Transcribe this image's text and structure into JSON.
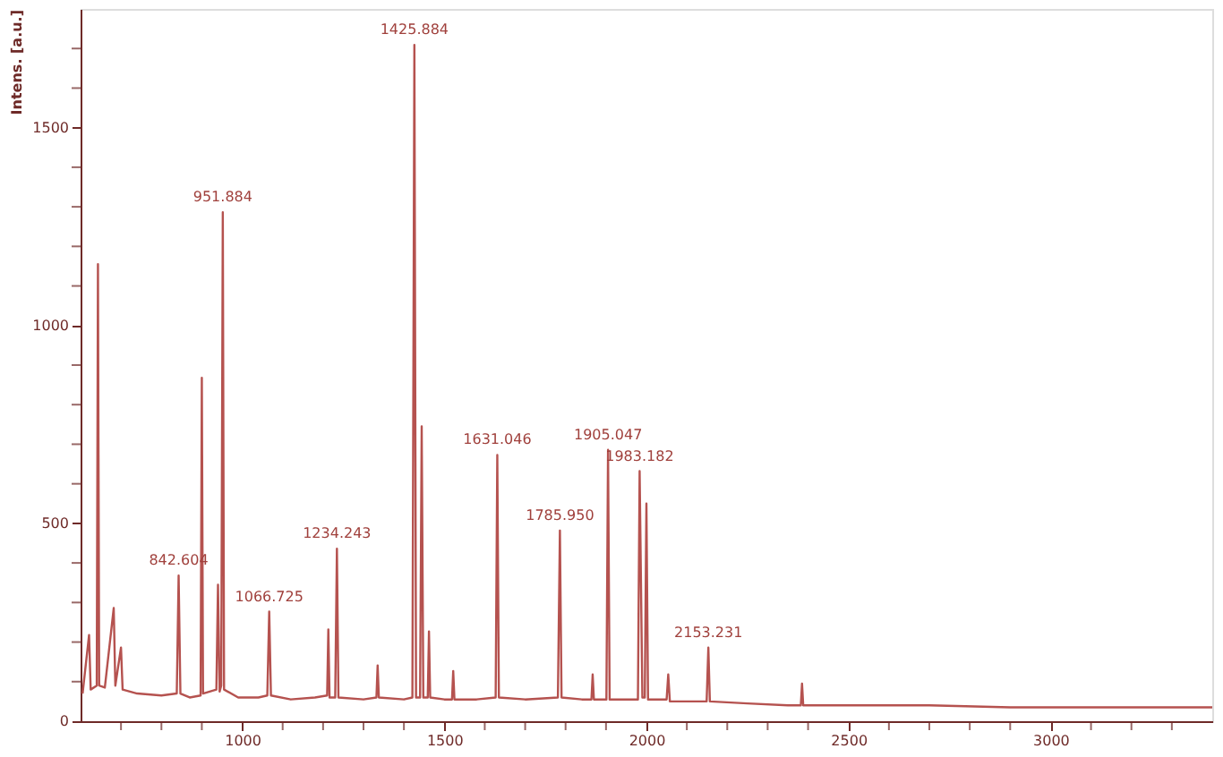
{
  "chart_data": {
    "type": "line",
    "ylabel": "Intens. [a.u.]",
    "x": [
      605,
      621,
      625,
      640,
      643,
      646,
      660,
      682,
      686,
      700,
      704,
      740,
      800,
      838,
      842.604,
      847,
      870,
      897,
      900,
      903,
      936,
      940,
      944,
      948,
      951.884,
      955,
      990,
      1040,
      1062,
      1066.725,
      1071,
      1120,
      1180,
      1210,
      1213,
      1216,
      1230,
      1234.243,
      1238,
      1300,
      1332,
      1335,
      1338,
      1400,
      1421,
      1425.884,
      1430,
      1440,
      1444,
      1448,
      1459,
      1462,
      1465,
      1500,
      1519,
      1522,
      1525,
      1580,
      1627,
      1631.046,
      1635,
      1700,
      1781,
      1785.95,
      1790,
      1840,
      1864,
      1867,
      1870,
      1901,
      1905.047,
      1909,
      1960,
      1979,
      1983.182,
      1990,
      1996,
      2000,
      2004,
      2050,
      2054,
      2058,
      2100,
      2149,
      2153.231,
      2157,
      2250,
      2350,
      2382,
      2385,
      2388,
      2500,
      2700,
      2900,
      3100,
      3300,
      3400
    ],
    "series": [
      {
        "color": "#b5524f",
        "values": [
          70,
          218,
          80,
          90,
          1155,
          90,
          85,
          286,
          90,
          186,
          80,
          70,
          65,
          70,
          368,
          70,
          60,
          65,
          868,
          70,
          80,
          345,
          75,
          90,
          1286,
          80,
          60,
          60,
          65,
          277,
          65,
          55,
          60,
          65,
          232,
          60,
          60,
          436,
          60,
          55,
          60,
          141,
          60,
          55,
          60,
          1709,
          60,
          60,
          745,
          60,
          60,
          227,
          60,
          55,
          55,
          127,
          55,
          55,
          60,
          673,
          60,
          55,
          60,
          482,
          60,
          55,
          55,
          118,
          55,
          55,
          686,
          55,
          55,
          55,
          632,
          60,
          60,
          550,
          55,
          55,
          118,
          50,
          50,
          50,
          186,
          50,
          45,
          40,
          40,
          95,
          40,
          40,
          40,
          35,
          35,
          35,
          35
        ]
      }
    ],
    "annotations": [
      {
        "text": "842.604",
        "x": 842.604,
        "y": 368
      },
      {
        "text": "951.884",
        "x": 951.884,
        "y": 1286
      },
      {
        "text": "1066.725",
        "x": 1066.725,
        "y": 277
      },
      {
        "text": "1234.243",
        "x": 1234.243,
        "y": 436
      },
      {
        "text": "1425.884",
        "x": 1425.884,
        "y": 1709
      },
      {
        "text": "1631.046",
        "x": 1631.046,
        "y": 673
      },
      {
        "text": "1785.950",
        "x": 1785.95,
        "y": 482
      },
      {
        "text": "1905.047",
        "x": 1905.047,
        "y": 686
      },
      {
        "text": "1983.182",
        "x": 1983.182,
        "y": 632
      },
      {
        "text": "2153.231",
        "x": 2153.231,
        "y": 186
      }
    ],
    "xlim": [
      600,
      3400
    ],
    "xticks": [
      {
        "value": 700,
        "label": null
      },
      {
        "value": 800,
        "label": null
      },
      {
        "value": 900,
        "label": null
      },
      1000,
      {
        "value": 1100,
        "label": null
      },
      {
        "value": 1200,
        "label": null
      },
      {
        "value": 1300,
        "label": null
      },
      {
        "value": 1400,
        "label": null
      },
      1500,
      {
        "value": 1600,
        "label": null
      },
      {
        "value": 1700,
        "label": null
      },
      {
        "value": 1800,
        "label": null
      },
      {
        "value": 1900,
        "label": null
      },
      2000,
      {
        "value": 2100,
        "label": null
      },
      {
        "value": 2200,
        "label": null
      },
      {
        "value": 2300,
        "label": null
      },
      {
        "value": 2400,
        "label": null
      },
      2500,
      {
        "value": 2600,
        "label": null
      },
      {
        "value": 2700,
        "label": null
      },
      {
        "value": 2800,
        "label": null
      },
      {
        "value": 2900,
        "label": null
      },
      3000,
      {
        "value": 3100,
        "label": null
      },
      {
        "value": 3200,
        "label": null
      },
      {
        "value": 3300,
        "label": null
      }
    ],
    "ylim": [
      0,
      1800
    ],
    "yticks": [
      0,
      {
        "value": 100,
        "label": null
      },
      {
        "value": 200,
        "label": null
      },
      {
        "value": 300,
        "label": null
      },
      {
        "value": 400,
        "label": null
      },
      500,
      {
        "value": 600,
        "label": null
      },
      {
        "value": 700,
        "label": null
      },
      {
        "value": 800,
        "label": null
      },
      {
        "value": 900,
        "label": null
      },
      1000,
      {
        "value": 1100,
        "label": null
      },
      {
        "value": 1200,
        "label": null
      },
      {
        "value": 1300,
        "label": null
      },
      {
        "value": 1400,
        "label": null
      },
      1500,
      {
        "value": 1600,
        "label": null
      },
      {
        "value": 1700,
        "label": null
      }
    ],
    "grid": false,
    "legend": false,
    "marker": "none",
    "line_style": "solid"
  }
}
